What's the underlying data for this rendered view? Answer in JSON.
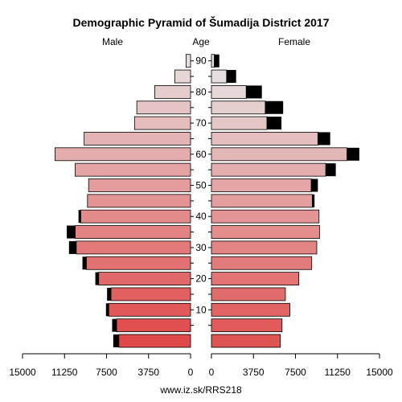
{
  "chart_data": {
    "type": "bar",
    "subtype": "population-pyramid",
    "title": "Demographic Pyramid of Šumadija District 2017",
    "left_label": "Male",
    "center_label": "Age",
    "right_label": "Female",
    "footer": "www.iz.sk/RRS218",
    "xlim": [
      0,
      15000
    ],
    "x_ticks_left": [
      "15000",
      "11250",
      "7500",
      "3750",
      "0"
    ],
    "x_ticks_right": [
      "0",
      "3750",
      "7500",
      "11250",
      "15000"
    ],
    "tick_values": [
      15000,
      11250,
      7500,
      3750,
      0
    ],
    "age_tick_labels": [
      "10",
      "20",
      "30",
      "40",
      "50",
      "60",
      "70",
      "80",
      "90"
    ],
    "age_groups": [
      "0-4",
      "5-9",
      "10-14",
      "15-19",
      "20-24",
      "25-29",
      "30-34",
      "35-39",
      "40-44",
      "45-49",
      "50-54",
      "55-59",
      "60-64",
      "65-69",
      "70-74",
      "75-79",
      "80-84",
      "85-89",
      "90+"
    ],
    "series": [
      {
        "name": "Male",
        "values": [
          6400,
          6600,
          7300,
          7100,
          8200,
          9300,
          10200,
          10300,
          9800,
          9200,
          9100,
          10300,
          12100,
          9500,
          5000,
          4800,
          3200,
          1400,
          400
        ],
        "excess": [
          500,
          400,
          250,
          350,
          300,
          350,
          650,
          750,
          200,
          0,
          0,
          0,
          0,
          0,
          0,
          0,
          0,
          0,
          0
        ]
      },
      {
        "name": "Female",
        "values": [
          6150,
          6300,
          7000,
          6600,
          7800,
          8950,
          9400,
          9650,
          9600,
          9000,
          8900,
          10200,
          12100,
          9500,
          4950,
          4800,
          3100,
          1350,
          250
        ],
        "excess": [
          0,
          0,
          0,
          0,
          0,
          0,
          0,
          0,
          0,
          200,
          600,
          900,
          1100,
          1100,
          1300,
          1600,
          1400,
          850,
          450
        ]
      }
    ],
    "colors": {
      "young": "#e04848",
      "old": "#e6dede",
      "excess": "#000000",
      "text": "#000000"
    },
    "grid": false
  }
}
